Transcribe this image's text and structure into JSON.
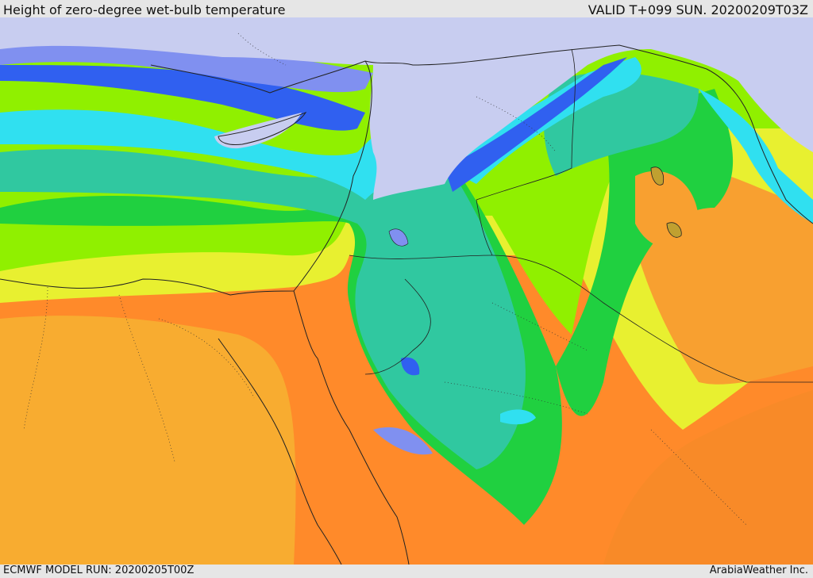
{
  "header": {
    "title": "Height of zero-degree wet-bulb temperature",
    "valid": "VALID T+099 SUN. 20200209T03Z"
  },
  "footer": {
    "model_run": "ECMWF MODEL RUN: 20200205T00Z",
    "credit": "ArabiaWeather Inc."
  },
  "palette": {
    "lavender": "#c8cdf0",
    "periwinkle": "#8090f0",
    "blue": "#3060f0",
    "cyan": "#30e0f0",
    "teal": "#30c8a0",
    "green": "#20d040",
    "lime": "#90f000",
    "yellow": "#e8f030",
    "light-orange": "#f8b030",
    "orange": "#f88a28",
    "red-orange": "#f85a18"
  }
}
